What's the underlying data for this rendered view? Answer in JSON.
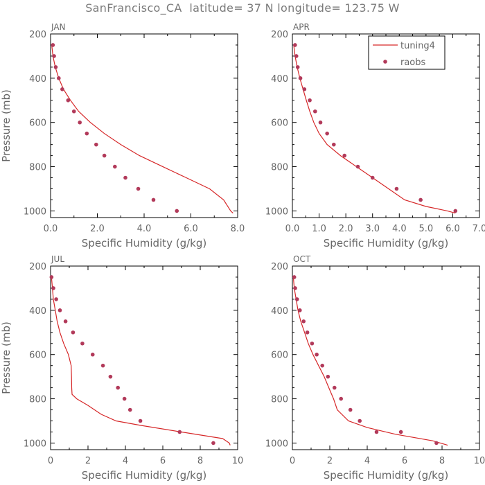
{
  "title": "SanFrancisco_CA  latitude= 37 N longitude= 123.75 W",
  "colors": {
    "model": "#d62728",
    "obs": "#b23a5a",
    "axis": "#000000",
    "text": "#666666"
  },
  "legend": {
    "items": [
      {
        "label": "tuning4",
        "kind": "line"
      },
      {
        "label": "raobs",
        "kind": "dot"
      }
    ]
  },
  "chart_data": [
    {
      "type": "line",
      "panel": "JAN",
      "xlabel": "Specific Humidity (g/kg)",
      "ylabel": "Pressure (mb)",
      "xlim": [
        0,
        8
      ],
      "ylim": [
        200,
        1030
      ],
      "xticks": [
        0,
        2,
        4,
        6,
        8
      ],
      "xtick_labels": [
        "0.0",
        "2.0",
        "4.0",
        "6.0",
        "8.0"
      ],
      "yticks": [
        200,
        400,
        600,
        800,
        1000
      ],
      "y_inverted": true,
      "series": [
        {
          "name": "tuning4",
          "style": "line",
          "x": [
            0.05,
            0.1,
            0.2,
            0.35,
            0.55,
            0.85,
            1.2,
            1.7,
            2.3,
            3.0,
            3.8,
            4.8,
            5.8,
            6.8,
            7.4,
            7.7,
            7.8
          ],
          "y": [
            250,
            300,
            350,
            400,
            450,
            500,
            550,
            600,
            650,
            700,
            750,
            800,
            850,
            900,
            950,
            1000,
            1010
          ]
        },
        {
          "name": "raobs",
          "style": "markers",
          "x": [
            0.1,
            0.15,
            0.22,
            0.35,
            0.5,
            0.75,
            1.0,
            1.25,
            1.55,
            1.95,
            2.3,
            2.75,
            3.2,
            3.75,
            4.4,
            5.4
          ],
          "y": [
            250,
            300,
            350,
            400,
            450,
            500,
            550,
            600,
            650,
            700,
            750,
            800,
            850,
            900,
            950,
            1000
          ]
        }
      ]
    },
    {
      "type": "line",
      "panel": "APR",
      "xlabel": "Specific Humidity (g/kg)",
      "ylabel": "",
      "xlim": [
        0,
        7
      ],
      "ylim": [
        200,
        1030
      ],
      "xticks": [
        0,
        1,
        2,
        3,
        4,
        5,
        6,
        7
      ],
      "xtick_labels": [
        "0.0",
        "1.0",
        "2.0",
        "3.0",
        "4.0",
        "5.0",
        "6.0",
        "7.0"
      ],
      "yticks": [
        200,
        400,
        600,
        800,
        1000
      ],
      "y_inverted": true,
      "series": [
        {
          "name": "tuning4",
          "style": "line",
          "x": [
            0.05,
            0.1,
            0.18,
            0.28,
            0.4,
            0.52,
            0.65,
            0.8,
            1.0,
            1.3,
            1.8,
            2.4,
            3.0,
            3.6,
            4.2,
            5.0,
            5.8,
            6.1
          ],
          "y": [
            250,
            300,
            350,
            400,
            450,
            500,
            550,
            600,
            650,
            700,
            750,
            800,
            850,
            900,
            950,
            980,
            1000,
            1010
          ]
        },
        {
          "name": "raobs",
          "style": "markers",
          "x": [
            0.1,
            0.15,
            0.2,
            0.3,
            0.45,
            0.65,
            0.85,
            1.05,
            1.3,
            1.55,
            1.95,
            2.45,
            3.0,
            3.9,
            4.8,
            6.1
          ],
          "y": [
            250,
            300,
            350,
            400,
            450,
            500,
            550,
            600,
            650,
            700,
            750,
            800,
            850,
            900,
            950,
            1000
          ]
        }
      ]
    },
    {
      "type": "line",
      "panel": "JUL",
      "xlabel": "Specific Humidity (g/kg)",
      "ylabel": "Pressure (mb)",
      "xlim": [
        0,
        10
      ],
      "ylim": [
        200,
        1030
      ],
      "xticks": [
        0,
        2,
        4,
        6,
        8,
        10
      ],
      "xtick_labels": [
        "0",
        "2",
        "4",
        "6",
        "8",
        "10"
      ],
      "yticks": [
        200,
        400,
        600,
        800,
        1000
      ],
      "y_inverted": true,
      "series": [
        {
          "name": "tuning4",
          "style": "line",
          "x": [
            0.05,
            0.1,
            0.15,
            0.25,
            0.35,
            0.5,
            0.7,
            0.95,
            1.1,
            1.12,
            1.13,
            1.15,
            1.4,
            2.0,
            2.7,
            3.5,
            4.8,
            7.0,
            9.2,
            9.55,
            9.6
          ],
          "y": [
            250,
            300,
            350,
            400,
            450,
            500,
            550,
            600,
            650,
            700,
            750,
            780,
            800,
            830,
            870,
            900,
            920,
            950,
            980,
            1000,
            1010
          ]
        },
        {
          "name": "raobs",
          "style": "markers",
          "x": [
            0.05,
            0.15,
            0.3,
            0.5,
            0.8,
            1.2,
            1.7,
            2.25,
            2.8,
            3.2,
            3.6,
            3.95,
            4.25,
            4.8,
            6.9,
            8.7
          ],
          "y": [
            250,
            300,
            350,
            400,
            450,
            500,
            550,
            600,
            650,
            700,
            750,
            800,
            850,
            900,
            950,
            1000
          ]
        }
      ]
    },
    {
      "type": "line",
      "panel": "OCT",
      "xlabel": "Specific Humidity (g/kg)",
      "ylabel": "",
      "xlim": [
        0,
        10
      ],
      "ylim": [
        200,
        1030
      ],
      "xticks": [
        0,
        2,
        4,
        6,
        8,
        10
      ],
      "xtick_labels": [
        "0",
        "2",
        "4",
        "6",
        "8",
        "10"
      ],
      "yticks": [
        200,
        400,
        600,
        800,
        1000
      ],
      "y_inverted": true,
      "series": [
        {
          "name": "tuning4",
          "style": "line",
          "x": [
            0.05,
            0.1,
            0.2,
            0.3,
            0.45,
            0.65,
            0.85,
            1.1,
            1.4,
            1.7,
            1.95,
            2.2,
            2.4,
            3.0,
            4.0,
            5.5,
            7.5,
            8.3
          ],
          "y": [
            250,
            300,
            350,
            400,
            450,
            500,
            550,
            600,
            650,
            700,
            750,
            800,
            850,
            900,
            930,
            960,
            990,
            1010
          ]
        },
        {
          "name": "raobs",
          "style": "markers",
          "x": [
            0.1,
            0.15,
            0.25,
            0.4,
            0.6,
            0.8,
            1.05,
            1.3,
            1.6,
            1.9,
            2.25,
            2.6,
            3.1,
            3.6,
            4.5,
            5.8,
            7.7
          ],
          "y": [
            250,
            300,
            350,
            400,
            450,
            500,
            550,
            600,
            650,
            700,
            750,
            800,
            850,
            900,
            950,
            950,
            1000
          ]
        }
      ]
    }
  ]
}
